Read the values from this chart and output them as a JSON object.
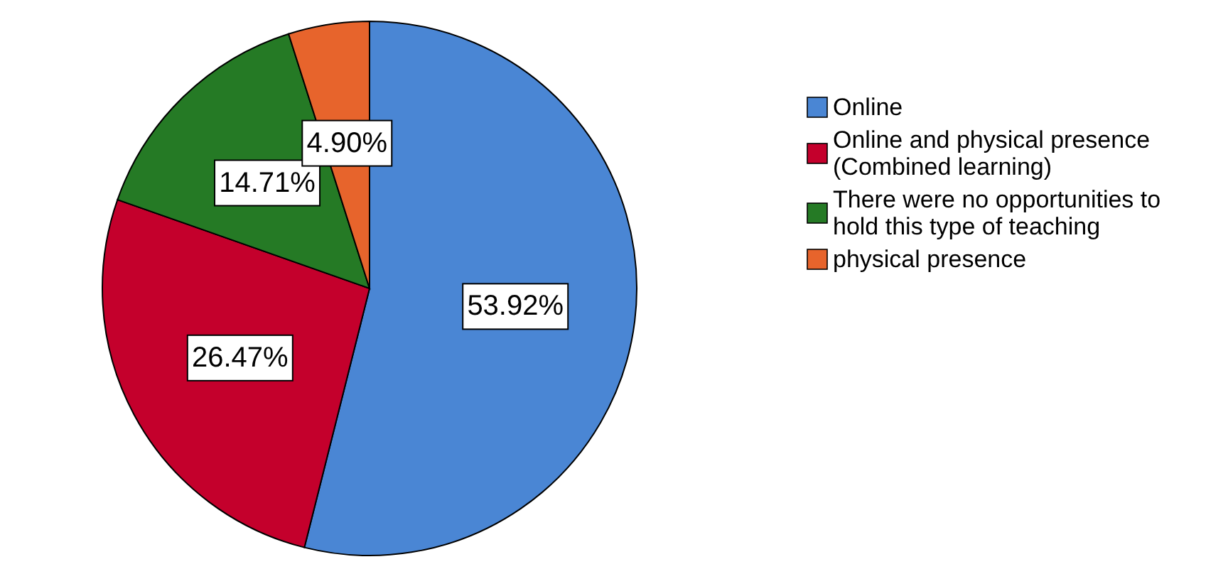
{
  "chart_data": {
    "type": "pie",
    "categories": [
      "Online",
      "Online and physical presence (Combined learning)",
      "There were no opportunities to hold this type of teaching",
      "physical presence"
    ],
    "values": [
      53.92,
      26.47,
      14.71,
      4.9
    ],
    "value_labels": [
      "53.92%",
      "26.47%",
      "14.71%",
      "4.90%"
    ],
    "colors": [
      "#4a86d4",
      "#c4002c",
      "#257a25",
      "#e7642c"
    ],
    "legend": "right"
  }
}
